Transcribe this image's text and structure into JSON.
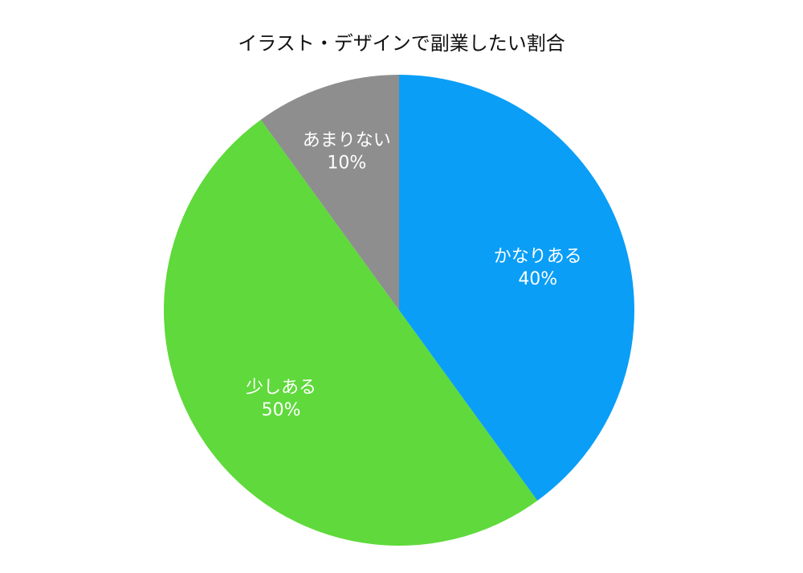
{
  "chart_data": {
    "type": "pie",
    "title": "イラスト・デザインで副業したい割合",
    "slices": [
      {
        "label": "かなりある",
        "value": 40,
        "value_label": "40%",
        "color": "#0a9ef7"
      },
      {
        "label": "少しある",
        "value": 50,
        "value_label": "50%",
        "color": "#5fd93b"
      },
      {
        "label": "あまりない",
        "value": 10,
        "value_label": "10%",
        "color": "#8e8e8e"
      }
    ],
    "start": "top",
    "direction": "clockwise",
    "legend": "none"
  }
}
